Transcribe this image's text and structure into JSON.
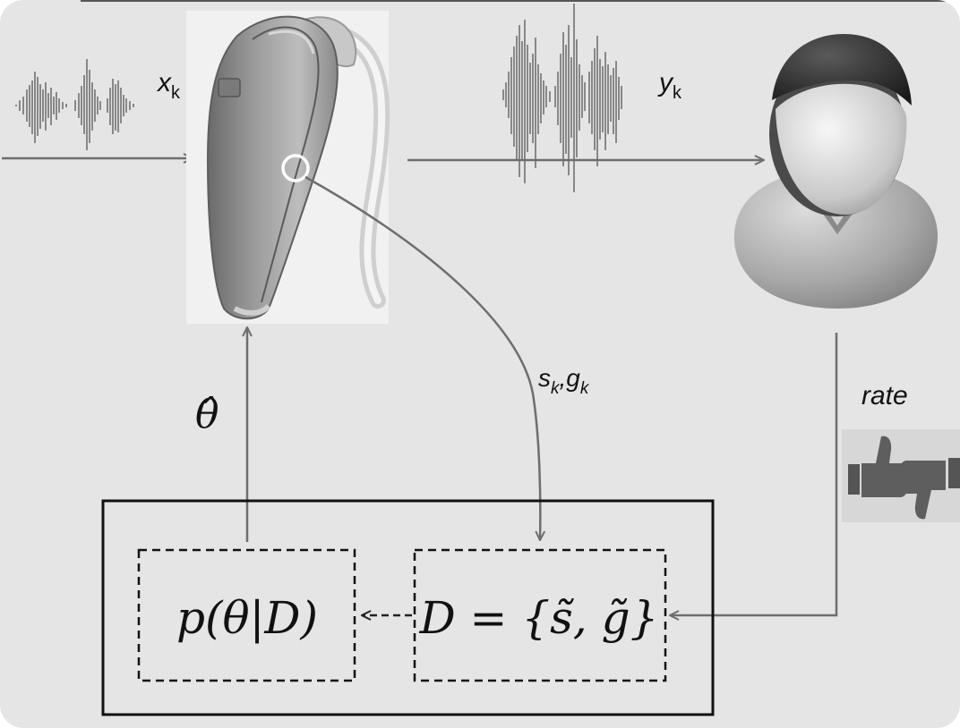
{
  "labels": {
    "input_signal": "x",
    "input_signal_sub": "k",
    "output_signal": "y",
    "output_signal_sub": "k",
    "params_s": "s",
    "params_s_sub": "k",
    "params_sep": ",",
    "params_g": "g",
    "params_g_sub": "k",
    "theta_hat": "θ̂",
    "rate": "rate",
    "posterior": "p(θ|D)",
    "dataset": "D = {s̃, g̃}"
  },
  "colors": {
    "background": "#e5e5e5",
    "arrow": "#6e6e6e",
    "device": "#8c8c8c",
    "text": "#111111"
  },
  "icons": {
    "hearing_aid": "hearing-aid-icon",
    "listener": "person-icon",
    "thumbs": "thumbs-up-down-icon",
    "input_wave": "waveform-icon",
    "output_wave": "waveform-icon"
  }
}
